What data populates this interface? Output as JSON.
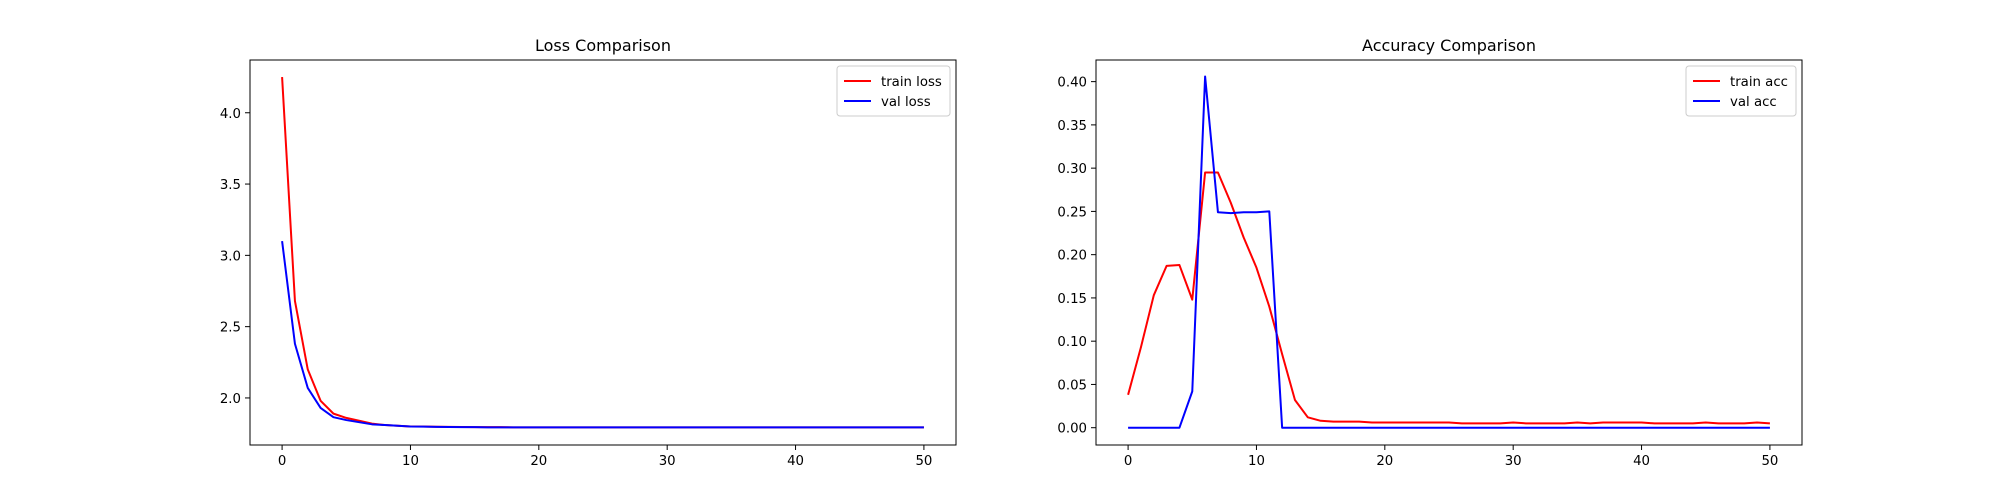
{
  "chart_data": [
    {
      "type": "line",
      "title": "Loss Comparison",
      "xlabel": "",
      "ylabel": "",
      "xlim": [
        -2.5,
        52.5
      ],
      "ylim": [
        1.67,
        4.37
      ],
      "xticks": [
        0,
        10,
        20,
        30,
        40,
        50
      ],
      "yticks": [
        2.0,
        2.5,
        3.0,
        3.5,
        4.0
      ],
      "xtick_labels": [
        "0",
        "10",
        "20",
        "30",
        "40",
        "50"
      ],
      "ytick_labels": [
        "2.0",
        "2.5",
        "3.0",
        "3.5",
        "4.0"
      ],
      "grid": false,
      "legend_position": "top-right",
      "x": [
        0,
        1,
        2,
        3,
        4,
        5,
        6,
        7,
        8,
        9,
        10,
        11,
        12,
        13,
        14,
        15,
        16,
        17,
        18,
        19,
        20,
        21,
        22,
        23,
        24,
        25,
        26,
        27,
        28,
        29,
        30,
        31,
        32,
        33,
        34,
        35,
        36,
        37,
        38,
        39,
        40,
        41,
        42,
        43,
        44,
        45,
        46,
        47,
        48,
        49,
        50
      ],
      "series": [
        {
          "name": "train loss",
          "color": "#ff0000",
          "values": [
            4.25,
            2.68,
            2.2,
            1.98,
            1.89,
            1.86,
            1.84,
            1.82,
            1.81,
            1.805,
            1.8,
            1.8,
            1.798,
            1.797,
            1.796,
            1.795,
            1.795,
            1.795,
            1.794,
            1.794,
            1.794,
            1.794,
            1.794,
            1.794,
            1.794,
            1.794,
            1.794,
            1.794,
            1.794,
            1.794,
            1.794,
            1.794,
            1.794,
            1.794,
            1.794,
            1.794,
            1.794,
            1.794,
            1.794,
            1.794,
            1.794,
            1.794,
            1.794,
            1.794,
            1.794,
            1.794,
            1.794,
            1.794,
            1.794,
            1.794,
            1.794
          ]
        },
        {
          "name": "val loss",
          "color": "#0000ff",
          "values": [
            3.1,
            2.38,
            2.07,
            1.93,
            1.865,
            1.845,
            1.83,
            1.815,
            1.81,
            1.805,
            1.8,
            1.799,
            1.797,
            1.796,
            1.795,
            1.795,
            1.794,
            1.794,
            1.794,
            1.794,
            1.794,
            1.794,
            1.794,
            1.794,
            1.794,
            1.794,
            1.794,
            1.794,
            1.794,
            1.794,
            1.794,
            1.794,
            1.794,
            1.794,
            1.794,
            1.794,
            1.794,
            1.794,
            1.794,
            1.794,
            1.794,
            1.794,
            1.794,
            1.794,
            1.794,
            1.794,
            1.794,
            1.794,
            1.794,
            1.794,
            1.794
          ]
        }
      ]
    },
    {
      "type": "line",
      "title": "Accuracy Comparison",
      "xlabel": "",
      "ylabel": "",
      "xlim": [
        -2.5,
        52.5
      ],
      "ylim": [
        -0.02,
        0.425
      ],
      "xticks": [
        0,
        10,
        20,
        30,
        40,
        50
      ],
      "yticks": [
        0.0,
        0.05,
        0.1,
        0.15,
        0.2,
        0.25,
        0.3,
        0.35,
        0.4
      ],
      "xtick_labels": [
        "0",
        "10",
        "20",
        "30",
        "40",
        "50"
      ],
      "ytick_labels": [
        "0.00",
        "0.05",
        "0.10",
        "0.15",
        "0.20",
        "0.25",
        "0.30",
        "0.35",
        "0.40"
      ],
      "grid": false,
      "legend_position": "top-right",
      "x": [
        0,
        1,
        2,
        3,
        4,
        5,
        6,
        7,
        8,
        9,
        10,
        11,
        12,
        13,
        14,
        15,
        16,
        17,
        18,
        19,
        20,
        21,
        22,
        23,
        24,
        25,
        26,
        27,
        28,
        29,
        30,
        31,
        32,
        33,
        34,
        35,
        36,
        37,
        38,
        39,
        40,
        41,
        42,
        43,
        44,
        45,
        46,
        47,
        48,
        49,
        50
      ],
      "series": [
        {
          "name": "train acc",
          "color": "#ff0000",
          "values": [
            0.038,
            0.093,
            0.153,
            0.187,
            0.188,
            0.148,
            0.295,
            0.295,
            0.26,
            0.22,
            0.185,
            0.14,
            0.085,
            0.032,
            0.012,
            0.008,
            0.007,
            0.007,
            0.007,
            0.006,
            0.006,
            0.006,
            0.006,
            0.006,
            0.006,
            0.006,
            0.005,
            0.005,
            0.005,
            0.005,
            0.006,
            0.005,
            0.005,
            0.005,
            0.005,
            0.006,
            0.005,
            0.006,
            0.006,
            0.006,
            0.006,
            0.005,
            0.005,
            0.005,
            0.005,
            0.006,
            0.005,
            0.005,
            0.005,
            0.006,
            0.005
          ]
        },
        {
          "name": "val acc",
          "color": "#0000ff",
          "values": [
            0.0,
            0.0,
            0.0,
            0.0,
            0.0,
            0.042,
            0.406,
            0.249,
            0.248,
            0.249,
            0.249,
            0.25,
            0.0,
            0.0,
            0.0,
            0.0,
            0.0,
            0.0,
            0.0,
            0.0,
            0.0,
            0.0,
            0.0,
            0.0,
            0.0,
            0.0,
            0.0,
            0.0,
            0.0,
            0.0,
            0.0,
            0.0,
            0.0,
            0.0,
            0.0,
            0.0,
            0.0,
            0.0,
            0.0,
            0.0,
            0.0,
            0.0,
            0.0,
            0.0,
            0.0,
            0.0,
            0.0,
            0.0,
            0.0,
            0.0,
            0.0
          ]
        }
      ]
    }
  ]
}
